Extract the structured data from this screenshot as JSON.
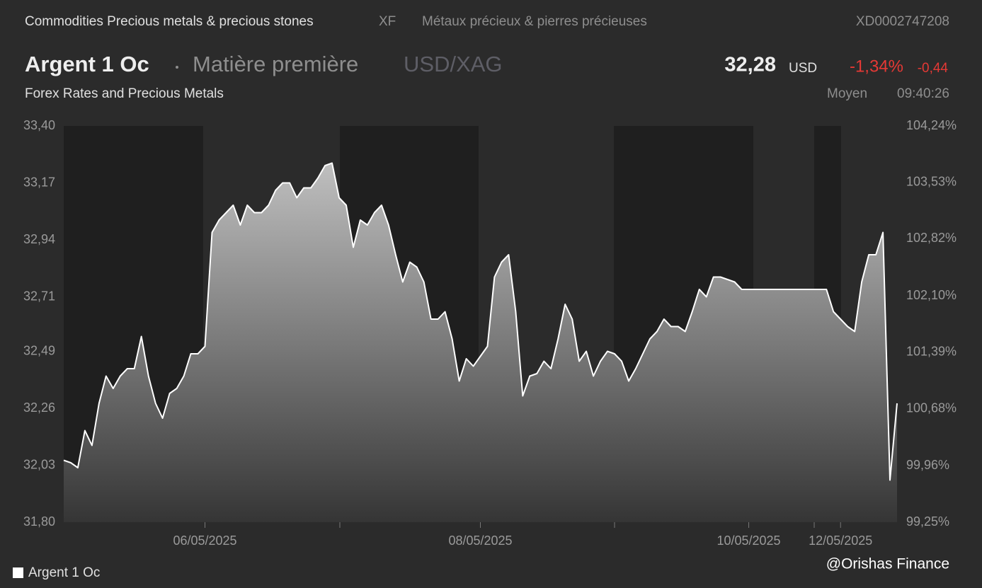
{
  "header": {
    "category": "Commodities Precious metals & precious stones",
    "exchange": "XF",
    "category_fr": "Métaux précieux & pierres précieuses",
    "isin": "XD0002747208",
    "name": "Argent 1 Oc",
    "kind": "Matière première",
    "pair": "USD/XAG",
    "price": "32,28",
    "currency": "USD",
    "change_pct": "-1,34%",
    "change": "-0,44",
    "source": "Forex Rates and Precious Metals",
    "price_type": "Moyen",
    "time": "09:40:26"
  },
  "watermark": "@Orishas Finance",
  "chart_data": {
    "type": "area",
    "categories": [
      null,
      null,
      null,
      null,
      null,
      null,
      null,
      null,
      null,
      null,
      null,
      null,
      null,
      null,
      null,
      null,
      null,
      null,
      null,
      null,
      "06/05/2025",
      null,
      null,
      null,
      null,
      null,
      null,
      null,
      null,
      null,
      null,
      null,
      null,
      null,
      null,
      null,
      null,
      null,
      null,
      null,
      null,
      null,
      null,
      null,
      null,
      null,
      null,
      null,
      null,
      null,
      null,
      null,
      null,
      null,
      null,
      null,
      null,
      null,
      null,
      "08/05/2025",
      null,
      null,
      null,
      null,
      null,
      null,
      null,
      null,
      null,
      null,
      null,
      null,
      null,
      null,
      null,
      null,
      null,
      null,
      null,
      null,
      null,
      null,
      null,
      null,
      null,
      null,
      null,
      null,
      null,
      null,
      null,
      null,
      null,
      null,
      null,
      null,
      null,
      "10/05/2025",
      null,
      null,
      null,
      null,
      null,
      null,
      null,
      null,
      null,
      null,
      null,
      null,
      "12/05/2025",
      null,
      null,
      null,
      null,
      null,
      null,
      null,
      null
    ],
    "series": [
      {
        "name": "Argent 1 Oc",
        "color": "#ffffff",
        "values": [
          32.05,
          32.04,
          32.02,
          32.17,
          32.11,
          32.28,
          32.39,
          32.34,
          32.39,
          32.42,
          32.42,
          32.55,
          32.39,
          32.28,
          32.22,
          32.32,
          32.34,
          32.39,
          32.48,
          32.48,
          32.51,
          32.97,
          33.02,
          33.05,
          33.08,
          33.0,
          33.08,
          33.05,
          33.05,
          33.08,
          33.14,
          33.17,
          33.17,
          33.11,
          33.15,
          33.15,
          33.19,
          33.24,
          33.25,
          33.11,
          33.08,
          32.91,
          33.02,
          33.0,
          33.05,
          33.08,
          33.0,
          32.88,
          32.77,
          32.85,
          32.83,
          32.77,
          32.62,
          32.62,
          32.65,
          32.54,
          32.37,
          32.46,
          32.43,
          32.47,
          32.51,
          32.79,
          32.85,
          32.88,
          32.65,
          32.31,
          32.39,
          32.4,
          32.45,
          32.42,
          32.54,
          32.68,
          32.62,
          32.45,
          32.49,
          32.39,
          32.45,
          32.49,
          32.48,
          32.45,
          32.37,
          32.42,
          32.48,
          32.54,
          32.57,
          32.62,
          32.59,
          32.59,
          32.57,
          32.65,
          32.74,
          32.71,
          32.79,
          32.79,
          32.78,
          32.77,
          32.74,
          32.74,
          32.74,
          32.74,
          32.74,
          32.74,
          32.74,
          32.74,
          32.74,
          32.74,
          32.74,
          32.74,
          32.74,
          32.65,
          32.62,
          32.59,
          32.57,
          32.77,
          32.88,
          32.88,
          32.97,
          31.97,
          32.28
        ]
      }
    ],
    "ylim": [
      31.8,
      33.4
    ],
    "yticks": [
      {
        "value": 33.4,
        "label": "33,40"
      },
      {
        "value": 33.17,
        "label": "33,17"
      },
      {
        "value": 32.94,
        "label": "32,94"
      },
      {
        "value": 32.71,
        "label": "32,71"
      },
      {
        "value": 32.49,
        "label": "32,49"
      },
      {
        "value": 32.26,
        "label": "32,26"
      },
      {
        "value": 32.03,
        "label": "32,03"
      },
      {
        "value": 31.8,
        "label": "31,80"
      }
    ],
    "y2lim": [
      99.25,
      104.24
    ],
    "y2ticks": [
      {
        "value": 104.24,
        "label": "104,24%"
      },
      {
        "value": 103.53,
        "label": "103,53%"
      },
      {
        "value": 102.82,
        "label": "102,82%"
      },
      {
        "value": 102.1,
        "label": "102,10%"
      },
      {
        "value": 101.39,
        "label": "101,39%"
      },
      {
        "value": 100.68,
        "label": "100,68%"
      },
      {
        "value": 99.96,
        "label": "99,96%"
      },
      {
        "value": 99.25,
        "label": "99,25%"
      }
    ],
    "grid": false,
    "legend": "bottom-left"
  }
}
